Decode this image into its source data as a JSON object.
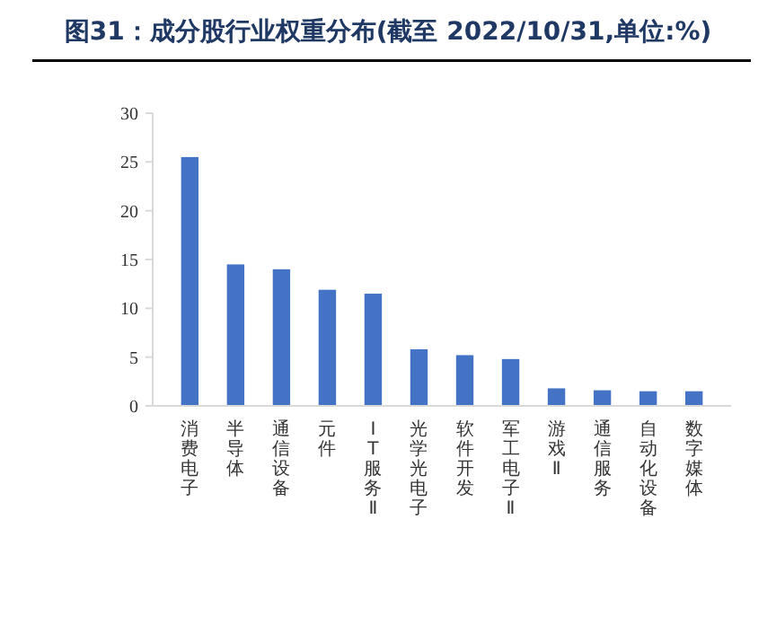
{
  "chart_data": {
    "type": "bar",
    "title": "图31：成分股行业权重分布(截至 2022/10/31,单位:%)",
    "categories": [
      "消费电子",
      "半导体",
      "通信设备",
      "元件",
      "IT服务Ⅱ",
      "光学光电子",
      "软件开发",
      "军工电子Ⅱ",
      "游戏Ⅱ",
      "通信服务",
      "自动化设备",
      "数字媒体"
    ],
    "values": [
      25.5,
      14.5,
      14,
      11.9,
      11.5,
      5.8,
      5.2,
      4.8,
      1.8,
      1.6,
      1.5,
      1.5
    ],
    "color": "#4472c4",
    "ylim": [
      0,
      30
    ],
    "yticks": [
      0,
      5,
      10,
      15,
      20,
      25,
      30
    ],
    "grid": false
  }
}
